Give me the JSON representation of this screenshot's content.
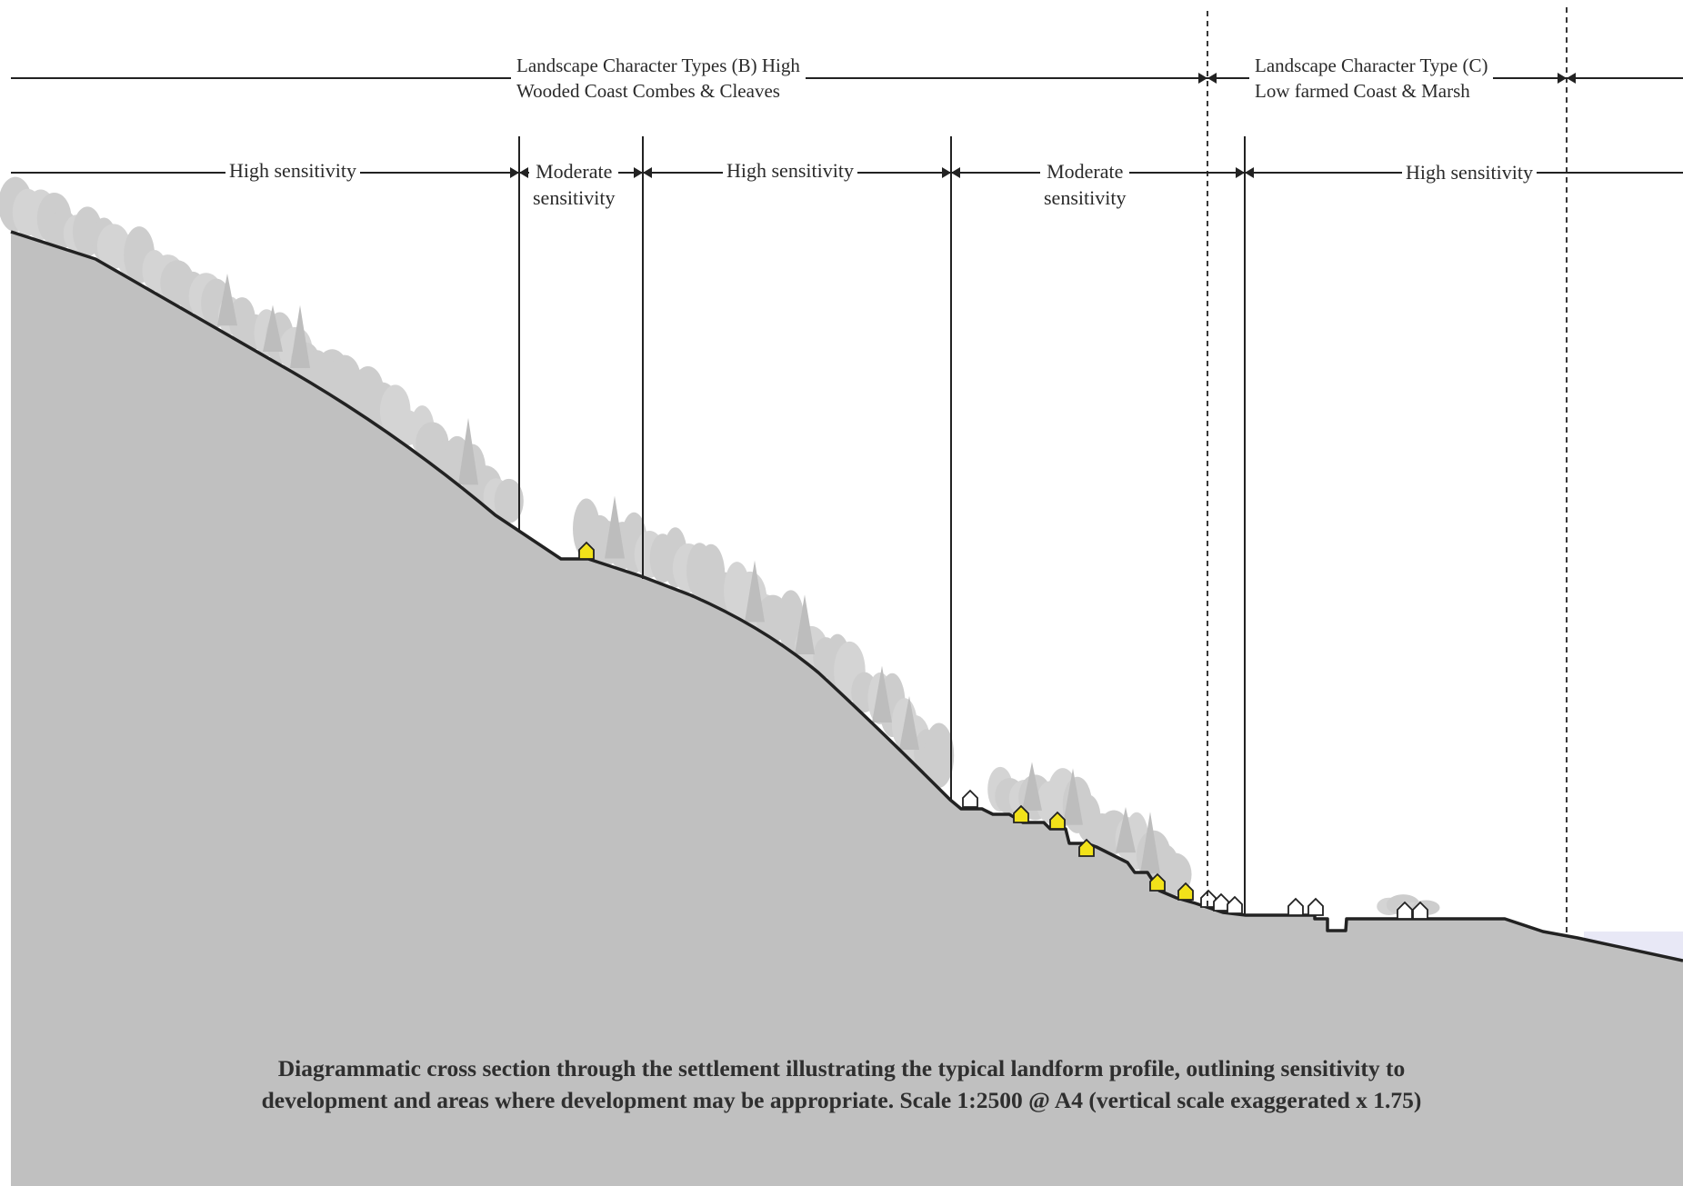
{
  "landscape_types": [
    {
      "line1": "Landscape Character Types (B) High",
      "line2": "Wooded Coast Combes & Cleaves"
    },
    {
      "line1": "Landscape Character Type (C)",
      "line2": "Low farmed Coast & Marsh"
    }
  ],
  "sensitivity_zones": [
    {
      "line1": "High sensitivity",
      "line2": ""
    },
    {
      "line1": "Moderate",
      "line2": "sensitivity"
    },
    {
      "line1": "High sensitivity",
      "line2": ""
    },
    {
      "line1": "Moderate",
      "line2": "sensitivity"
    },
    {
      "line1": "High sensitivity",
      "line2": ""
    }
  ],
  "caption": {
    "line1": "Diagrammatic cross section through the settlement illustrating the typical landform profile, outlining sensitivity to",
    "line2": "development and areas where development may be appropriate. Scale 1:2500 @ A4 (vertical scale exaggerated x 1.75)"
  },
  "colors": {
    "ground": "#c0c0c0",
    "ground_outline": "#222222",
    "trees": "#cdcdcd",
    "trees_dark": "#bdbdbd",
    "house_highlight": "#f2e21a",
    "house_plain": "#ffffff",
    "water": "#e8e8f6"
  }
}
